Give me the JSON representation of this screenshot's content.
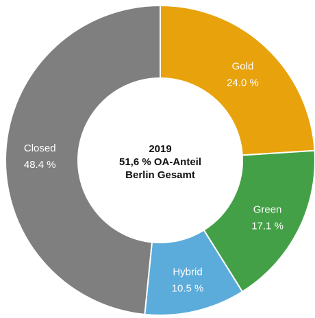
{
  "chart_data": {
    "type": "pie",
    "donut": true,
    "center_text": [
      "2019",
      "51,6 % OA-Anteil",
      "Berlin Gesamt"
    ],
    "categories": [
      "Gold",
      "Green",
      "Hybrid",
      "Closed"
    ],
    "values": [
      24.0,
      17.1,
      10.5,
      48.4
    ],
    "value_labels": [
      "24.0 %",
      "17.1 %",
      "10.5 %",
      "48.4 %"
    ],
    "colors": [
      "#E8A20C",
      "#44A047",
      "#5BACDB",
      "#7F7F7F"
    ],
    "start": "12 o'clock",
    "direction": "clockwise"
  }
}
